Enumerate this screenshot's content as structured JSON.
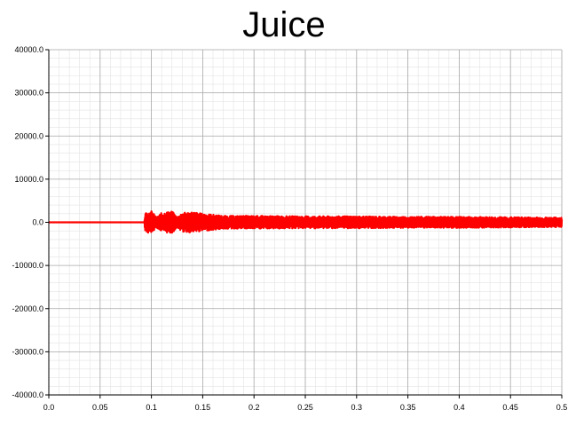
{
  "chart_data": {
    "type": "line",
    "title": "Juice",
    "xlabel": "",
    "ylabel": "",
    "xlim": [
      0.0,
      0.5
    ],
    "ylim": [
      -40000.0,
      40000.0
    ],
    "x_ticks": [
      "0.0",
      "0.05",
      "0.1",
      "0.15",
      "0.2",
      "0.25",
      "0.3",
      "0.35",
      "0.4",
      "0.45",
      "0.5"
    ],
    "y_ticks": [
      "40000.0",
      "30000.0",
      "20000.0",
      "10000.0",
      "0.0",
      "-10000.0",
      "-20000.0",
      "-30000.0",
      "-40000.0"
    ],
    "grid": true,
    "series": [
      {
        "color": "#ff0000",
        "x": [
          0.0,
          0.093,
          0.094,
          0.1,
          0.105,
          0.11,
          0.12,
          0.125,
          0.13,
          0.14,
          0.15,
          0.16,
          0.17,
          0.2,
          0.25,
          0.3,
          0.35,
          0.4,
          0.45,
          0.5
        ],
        "envelope_amplitude": [
          0,
          0,
          2200,
          2600,
          1200,
          2200,
          2600,
          1200,
          2200,
          2400,
          2000,
          1800,
          1500,
          1500,
          1400,
          1400,
          1300,
          1300,
          1200,
          1100
        ]
      }
    ]
  }
}
